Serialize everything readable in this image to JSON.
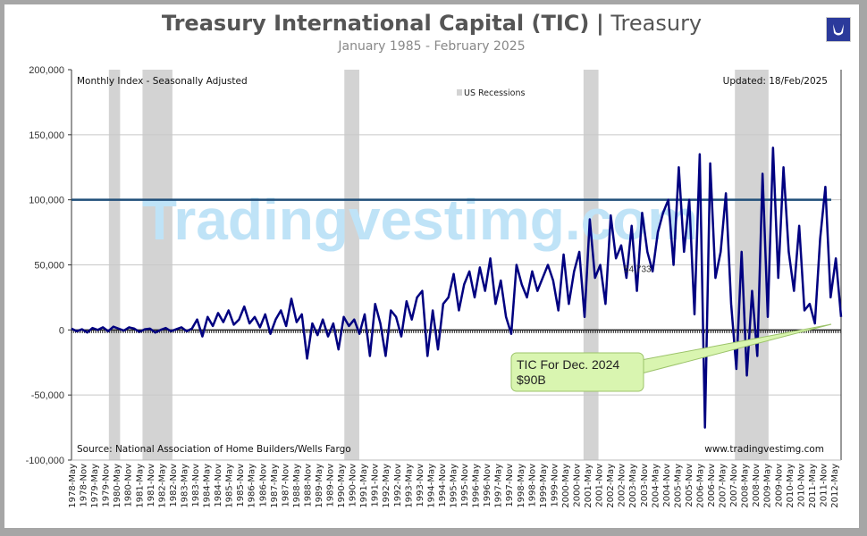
{
  "header": {
    "title_bold": "Treasury International Capital (TIC)",
    "title_separator": "|",
    "title_light": "Treasury",
    "subtitle": "January 1985 - February 2025",
    "logo_icon": "bull-horns-logo-icon"
  },
  "chart_data": {
    "type": "line",
    "title": "Treasury International Capital (TIC) | Treasury",
    "subtitle": "January 1985 - February 2025",
    "top_left_note": "Monthly Index - Seasonally Adjusted",
    "top_right_note": "Updated: 18/Feb/2025",
    "bottom_left_note": "Source: National Association of Home Builders/Wells Fargo",
    "bottom_right_note": "www.tradingvestimg.com",
    "watermark": "Tradingvestimg.com",
    "legend": {
      "label": "US Recessions",
      "placement": "top-center",
      "color": "#d3d3d3"
    },
    "ylim": [
      -100000,
      200000
    ],
    "yticks": [
      "200,000",
      "150,000",
      "100,000",
      "50,000",
      "0",
      "-50,000",
      "-100,000"
    ],
    "ytick_values": [
      200000,
      150000,
      100000,
      50000,
      0,
      -50000,
      -100000
    ],
    "grid": true,
    "xticks": [
      "1978-May",
      "1978-Nov",
      "1979-May",
      "1979-Nov",
      "1980-May",
      "1980-Nov",
      "1981-May",
      "1981-Nov",
      "1982-May",
      "1982-Nov",
      "1983-May",
      "1983-Nov",
      "1984-May",
      "1984-Nov",
      "1985-May",
      "1985-Nov",
      "1986-May",
      "1986-Nov",
      "1987-May",
      "1987-Nov",
      "1988-May",
      "1988-Nov",
      "1989-May",
      "1989-Nov",
      "1990-May",
      "1990-Nov",
      "1991-May",
      "1991-Nov",
      "1992-May",
      "1992-Nov",
      "1993-May",
      "1993-Nov",
      "1994-May",
      "1994-Nov",
      "1995-May",
      "1995-Nov",
      "1996-May",
      "1996-Nov",
      "1997-May",
      "1997-Nov",
      "1998-May",
      "1998-Nov",
      "1999-May",
      "1999-Nov",
      "2000-May",
      "2000-Nov",
      "2001-May",
      "2001-Nov",
      "2002-May",
      "2002-Nov",
      "2003-May",
      "2003-Nov",
      "2004-May",
      "2004-Nov",
      "2005-May",
      "2005-Nov",
      "2006-May",
      "2006-Nov",
      "2007-May",
      "2007-Nov",
      "2008-May",
      "2008-Nov",
      "2009-May",
      "2009-Nov",
      "2010-May",
      "2010-Nov",
      "2011-May",
      "2011-Nov",
      "2012-May"
    ],
    "recessions": [
      [
        "1980-Jan",
        "1980-Jul"
      ],
      [
        "1981-Jul",
        "1982-Nov"
      ],
      [
        "1990-Jul",
        "1991-Mar"
      ],
      [
        "2001-Mar",
        "2001-Nov"
      ],
      [
        "2007-Dec",
        "2009-Jun"
      ]
    ],
    "reference_line": {
      "value": 100000,
      "color": "#1f4e79"
    },
    "point_label": "54,733",
    "point_label_value": 54733,
    "series": [
      {
        "color": "#000080",
        "values": [
          1000,
          -1000,
          500,
          -2000,
          1500,
          0,
          2000,
          -1000,
          2500,
          1000,
          -500,
          2000,
          1000,
          -1500,
          500,
          1000,
          -2000,
          0,
          1500,
          -1000,
          500,
          2000,
          -1000,
          1000,
          8000,
          -5000,
          10000,
          3000,
          13000,
          6000,
          15000,
          4000,
          8000,
          18000,
          5000,
          10000,
          2000,
          12000,
          -3000,
          8000,
          15000,
          3000,
          24000,
          6000,
          12000,
          -22000,
          5000,
          -4000,
          8000,
          -5000,
          5000,
          -15000,
          10000,
          3000,
          8000,
          -3000,
          12000,
          -20000,
          20000,
          5000,
          -20000,
          15000,
          10000,
          -5000,
          22000,
          8000,
          25000,
          30000,
          -20000,
          15000,
          -15000,
          20000,
          25000,
          43000,
          15000,
          35000,
          45000,
          25000,
          48000,
          30000,
          55000,
          20000,
          38000,
          10000,
          -3000,
          50000,
          35000,
          25000,
          45000,
          30000,
          40000,
          50000,
          38000,
          15000,
          58000,
          20000,
          45000,
          60000,
          10000,
          85000,
          40000,
          50000,
          20000,
          88000,
          55000,
          65000,
          40000,
          80000,
          30000,
          90000,
          60000,
          45000,
          75000,
          90000,
          100000,
          50000,
          125000,
          60000,
          100000,
          12000,
          135000,
          -75000,
          128000,
          40000,
          60000,
          105000,
          20000,
          -30000,
          60000,
          -35000,
          30000,
          -20000,
          120000,
          10000,
          140000,
          40000,
          125000,
          60000,
          30000,
          80000,
          15000,
          20000,
          5000,
          70000,
          110000,
          25000,
          55000,
          10000
        ]
      }
    ],
    "annotation": {
      "line1": "TIC For Dec. 2024",
      "line2": "$90B",
      "color": "#d9f5b0"
    }
  }
}
